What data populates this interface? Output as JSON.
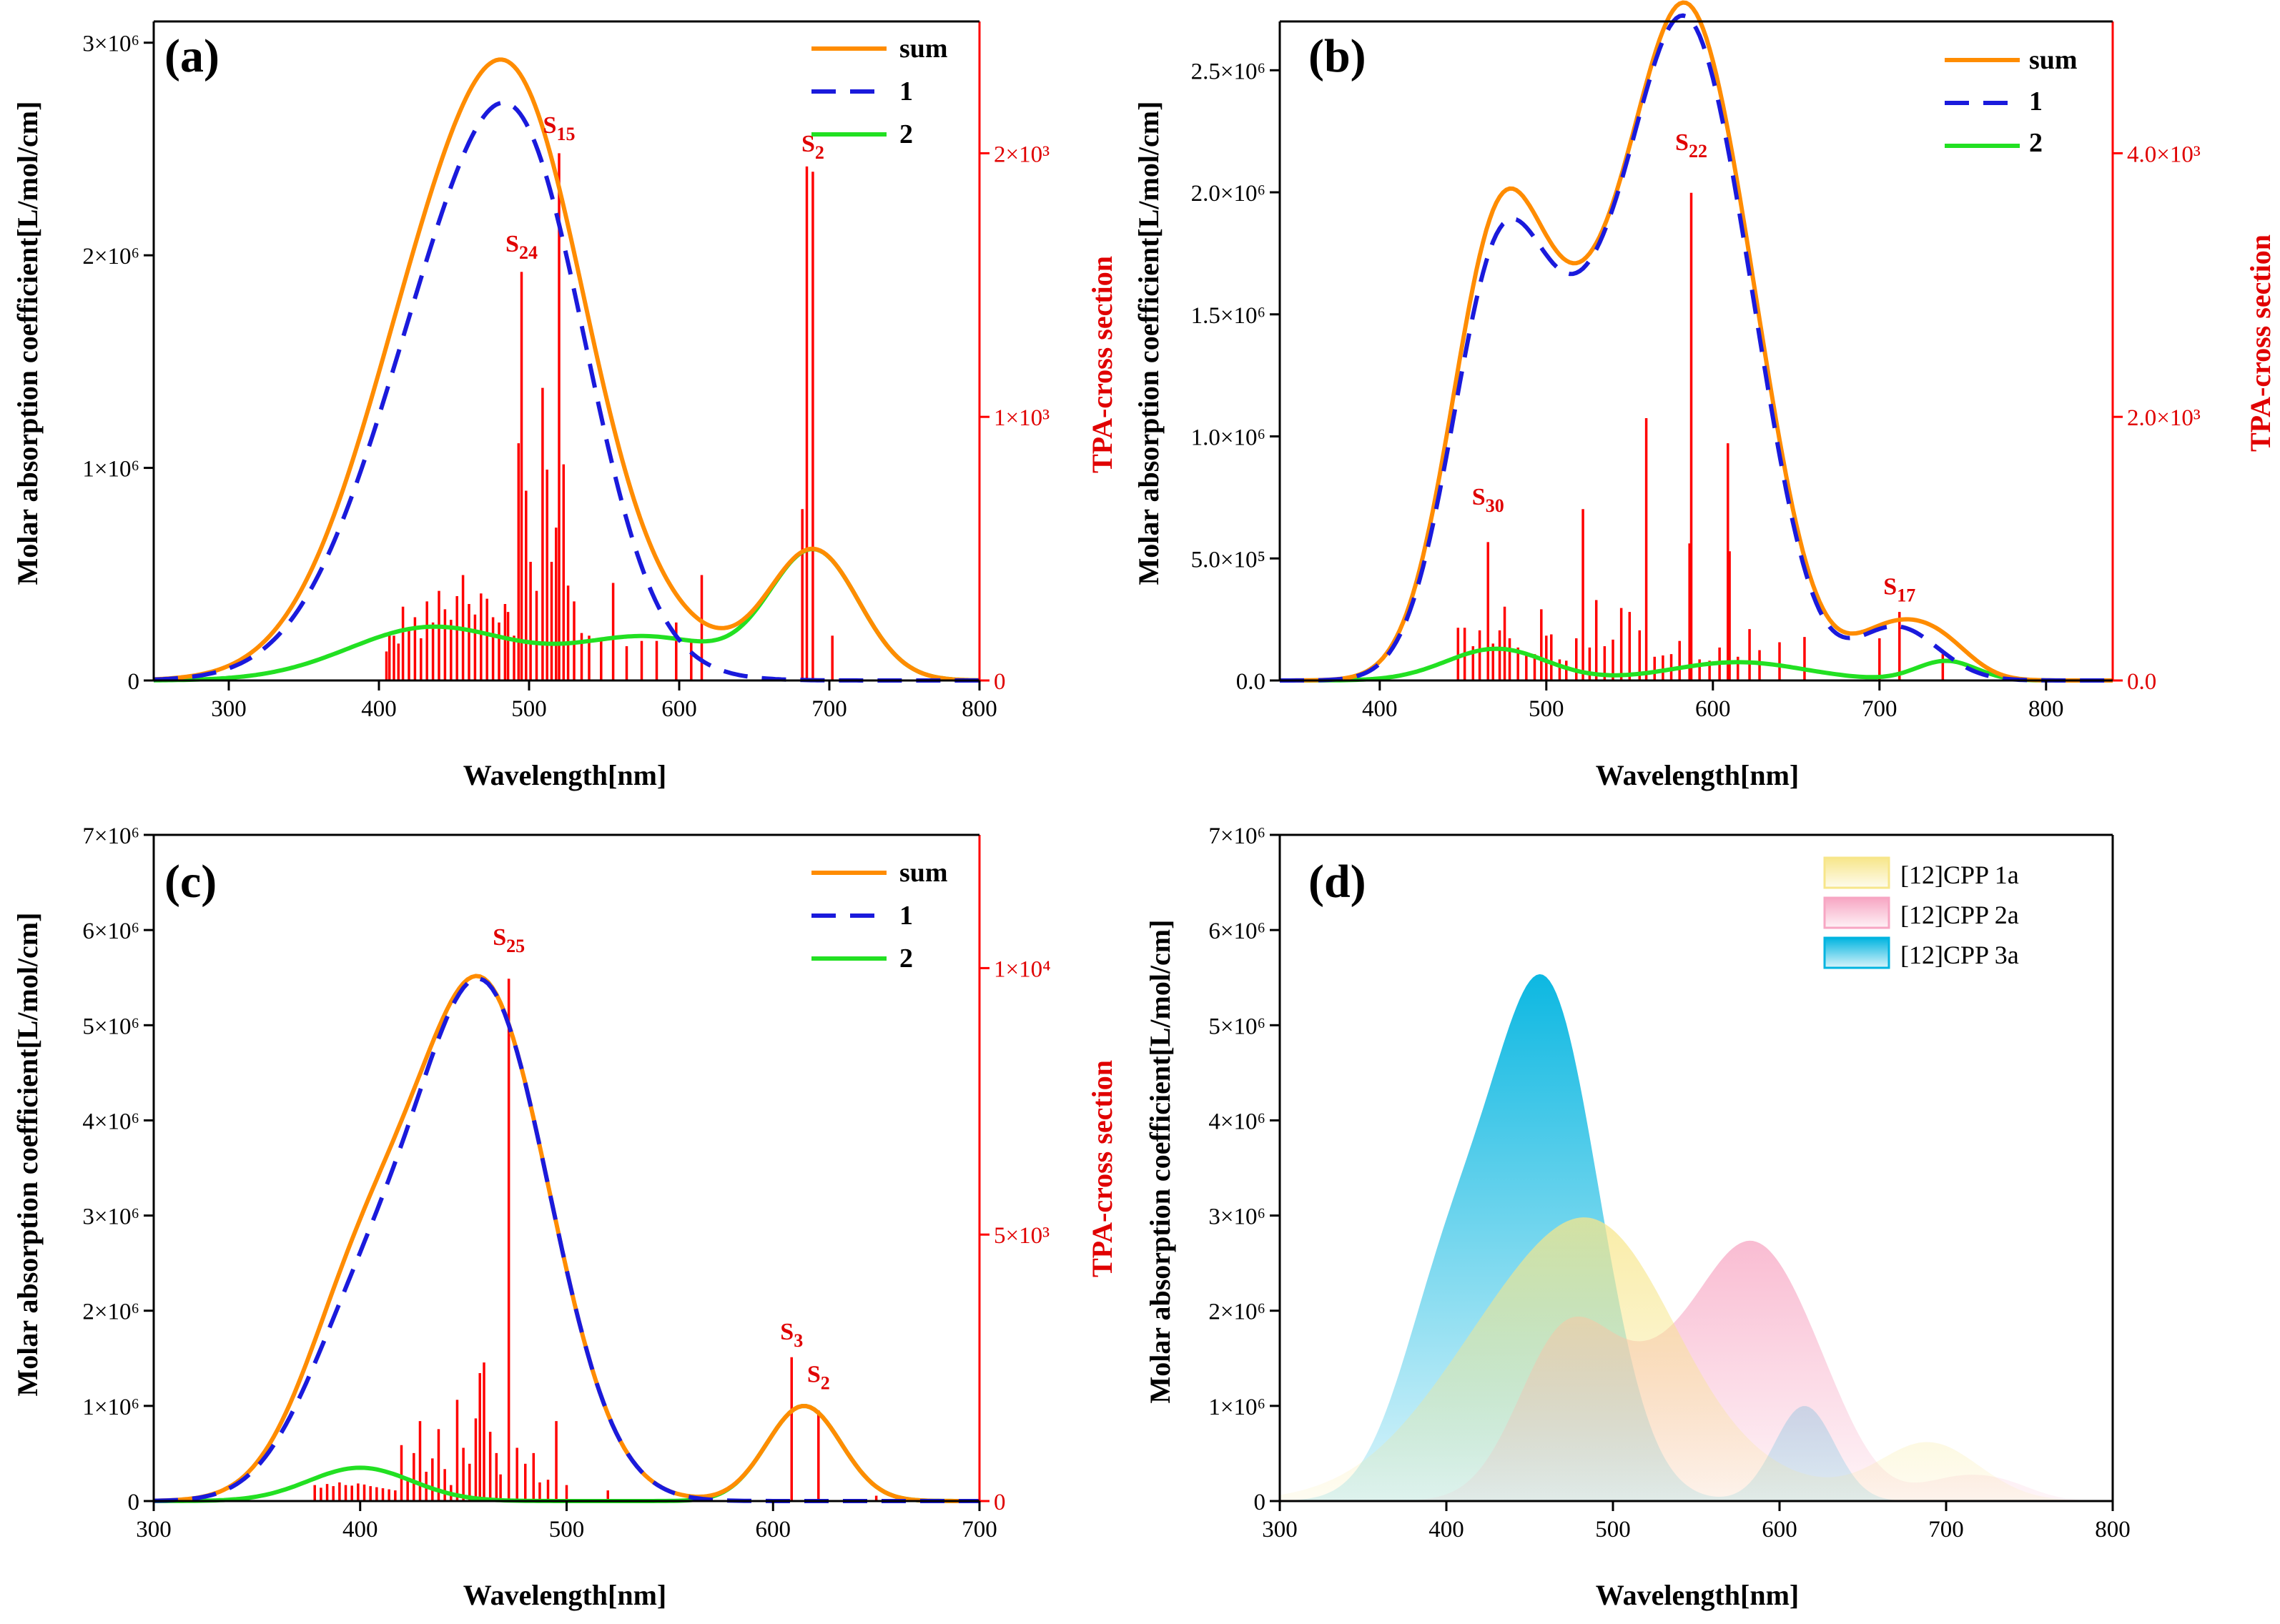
{
  "colors": {
    "sum": "#ff8c00",
    "series1": "#1a1adc",
    "series2": "#22e022",
    "tpa": "#ff0000",
    "cpp1a": "#f7e68a",
    "cpp2a": "#f7a6c3",
    "cpp3a": "#00b4e0"
  },
  "chart_data": [
    {
      "panel": "(a)",
      "type": "line",
      "xlabel": "Wavelength[nm]",
      "ylabel": "Molar absorption coefficient[L/mol/cm]",
      "y2label": "TPA-cross section",
      "xlim": [
        250,
        800
      ],
      "xticks": [
        300,
        400,
        500,
        600,
        700,
        800
      ],
      "ylim": [
        0,
        3100000
      ],
      "yticks": [
        {
          "v": 0,
          "t": "0"
        },
        {
          "v": 1000000,
          "t": "1×10⁶"
        },
        {
          "v": 2000000,
          "t": "2×10⁶"
        },
        {
          "v": 3000000,
          "t": "3×10⁶"
        }
      ],
      "y2lim": [
        0,
        2500
      ],
      "y2ticks": [
        {
          "v": 0,
          "t": "0"
        },
        {
          "v": 1000,
          "t": "1×10³"
        },
        {
          "v": 2000,
          "t": "2×10³"
        }
      ],
      "legend": [
        "sum",
        "1",
        "2"
      ],
      "bands": {
        "1": [
          [
            460,
            60,
            2000000
          ],
          [
            505,
            40,
            1000000
          ]
        ],
        "2": [
          [
            435,
            55,
            250000
          ],
          [
            580,
            50,
            200000
          ],
          [
            690,
            30,
            600000
          ]
        ]
      },
      "tpa_sticks": [
        [
          405,
          110
        ],
        [
          407,
          180
        ],
        [
          410,
          170
        ],
        [
          413,
          140
        ],
        [
          416,
          280
        ],
        [
          420,
          200
        ],
        [
          424,
          240
        ],
        [
          428,
          160
        ],
        [
          432,
          300
        ],
        [
          436,
          220
        ],
        [
          440,
          340
        ],
        [
          444,
          270
        ],
        [
          448,
          230
        ],
        [
          452,
          320
        ],
        [
          456,
          400
        ],
        [
          460,
          290
        ],
        [
          464,
          250
        ],
        [
          468,
          330
        ],
        [
          472,
          310
        ],
        [
          476,
          240
        ],
        [
          480,
          220
        ],
        [
          484,
          290
        ],
        [
          486,
          260
        ],
        [
          490,
          170
        ],
        [
          493,
          900
        ],
        [
          495,
          1550
        ],
        [
          498,
          720
        ],
        [
          501,
          450
        ],
        [
          505,
          340
        ],
        [
          509,
          1110
        ],
        [
          512,
          800
        ],
        [
          515,
          450
        ],
        [
          518,
          580
        ],
        [
          520,
          2000
        ],
        [
          523,
          820
        ],
        [
          526,
          360
        ],
        [
          530,
          300
        ],
        [
          535,
          180
        ],
        [
          540,
          170
        ],
        [
          548,
          150
        ],
        [
          556,
          370
        ],
        [
          565,
          130
        ],
        [
          575,
          150
        ],
        [
          585,
          150
        ],
        [
          598,
          220
        ],
        [
          608,
          150
        ],
        [
          615,
          400
        ],
        [
          682,
          650
        ],
        [
          685,
          1950
        ],
        [
          689,
          1930
        ],
        [
          702,
          170
        ]
      ],
      "state_labels": [
        {
          "base": "S",
          "sub": "15",
          "x": 520,
          "tpa": 2050
        },
        {
          "base": "S",
          "sub": "24",
          "x": 495,
          "tpa": 1600
        },
        {
          "base": "S",
          "sub": "2",
          "x": 689,
          "tpa": 1980
        }
      ]
    },
    {
      "panel": "(b)",
      "type": "line",
      "xlabel": "Wavelength[nm]",
      "ylabel": "Molar absorption coefficient[L/mol/cm]",
      "y2label": "TPA-cross section",
      "xlim": [
        340,
        840
      ],
      "xticks": [
        400,
        500,
        600,
        700,
        800
      ],
      "ylim": [
        0,
        2700000
      ],
      "yticks": [
        {
          "v": 0,
          "t": "0.0"
        },
        {
          "v": 500000,
          "t": "5.0×10⁵"
        },
        {
          "v": 1000000,
          "t": "1.0×10⁶"
        },
        {
          "v": 1500000,
          "t": "1.5×10⁶"
        },
        {
          "v": 2000000,
          "t": "2.0×10⁶"
        },
        {
          "v": 2500000,
          "t": "2.5×10⁶"
        }
      ],
      "y2lim": [
        0,
        5000
      ],
      "y2ticks": [
        {
          "v": 0,
          "t": "0.0"
        },
        {
          "v": 2000,
          "t": "2.0×10³"
        },
        {
          "v": 4000,
          "t": "4.0×10³"
        }
      ],
      "legend": [
        "sum",
        "1",
        "2"
      ],
      "bands": {
        "1": [
          [
            470,
            28,
            1550000
          ],
          [
            530,
            35,
            1200000
          ],
          [
            585,
            30,
            2200000
          ],
          [
            625,
            25,
            600000
          ],
          [
            710,
            25,
            220000
          ]
        ],
        "2": [
          [
            470,
            30,
            130000
          ],
          [
            615,
            40,
            75000
          ],
          [
            740,
            18,
            80000
          ]
        ]
      },
      "tpa_sticks": [
        [
          447,
          400
        ],
        [
          451,
          400
        ],
        [
          456,
          260
        ],
        [
          460,
          380
        ],
        [
          465,
          1050
        ],
        [
          468,
          280
        ],
        [
          472,
          380
        ],
        [
          475,
          560
        ],
        [
          478,
          320
        ],
        [
          483,
          250
        ],
        [
          488,
          210
        ],
        [
          493,
          200
        ],
        [
          497,
          540
        ],
        [
          500,
          340
        ],
        [
          503,
          350
        ],
        [
          508,
          160
        ],
        [
          512,
          150
        ],
        [
          518,
          320
        ],
        [
          522,
          1300
        ],
        [
          526,
          250
        ],
        [
          530,
          610
        ],
        [
          535,
          260
        ],
        [
          540,
          310
        ],
        [
          545,
          550
        ],
        [
          550,
          520
        ],
        [
          556,
          380
        ],
        [
          560,
          1990
        ],
        [
          565,
          180
        ],
        [
          570,
          190
        ],
        [
          575,
          200
        ],
        [
          580,
          300
        ],
        [
          586,
          1040
        ],
        [
          587,
          3700
        ],
        [
          592,
          160
        ],
        [
          598,
          150
        ],
        [
          604,
          250
        ],
        [
          609,
          1800
        ],
        [
          610,
          980
        ],
        [
          615,
          180
        ],
        [
          622,
          390
        ],
        [
          628,
          230
        ],
        [
          640,
          290
        ],
        [
          655,
          330
        ],
        [
          700,
          320
        ],
        [
          712,
          520
        ],
        [
          738,
          200
        ]
      ],
      "state_labels": [
        {
          "base": "S",
          "sub": "30",
          "x": 465,
          "tpa": 1280
        },
        {
          "base": "S",
          "sub": "22",
          "x": 587,
          "tpa": 3970
        },
        {
          "base": "S",
          "sub": "17",
          "x": 712,
          "tpa": 600
        }
      ]
    },
    {
      "panel": "(c)",
      "type": "line",
      "xlabel": "Wavelength[nm]",
      "ylabel": "Molar absorption coefficient[L/mol/cm]",
      "y2label": "TPA-cross section",
      "xlim": [
        300,
        700
      ],
      "xticks": [
        300,
        400,
        500,
        600,
        700
      ],
      "ylim": [
        0,
        7000000
      ],
      "yticks": [
        {
          "v": 0,
          "t": "0"
        },
        {
          "v": 1000000,
          "t": "1×10⁶"
        },
        {
          "v": 2000000,
          "t": "2×10⁶"
        },
        {
          "v": 3000000,
          "t": "3×10⁶"
        },
        {
          "v": 4000000,
          "t": "4×10⁶"
        },
        {
          "v": 5000000,
          "t": "5×10⁶"
        },
        {
          "v": 6000000,
          "t": "6×10⁶"
        },
        {
          "v": 7000000,
          "t": "7×10⁶"
        }
      ],
      "y2lim": [
        0,
        12500
      ],
      "y2ticks": [
        {
          "v": 0,
          "t": "0"
        },
        {
          "v": 5000,
          "t": "5×10³"
        },
        {
          "v": 10000,
          "t": "1×10⁴"
        }
      ],
      "legend": [
        "sum",
        "1",
        "2"
      ],
      "bands": {
        "1": [
          [
            400,
            28,
            1700000
          ],
          [
            460,
            32,
            5300000
          ]
        ],
        "2": [
          [
            400,
            25,
            350000
          ],
          [
            615,
            18,
            1000000
          ]
        ]
      },
      "tpa_sticks": [
        [
          378,
          300
        ],
        [
          381,
          250
        ],
        [
          384,
          320
        ],
        [
          387,
          280
        ],
        [
          390,
          350
        ],
        [
          393,
          300
        ],
        [
          396,
          290
        ],
        [
          399,
          330
        ],
        [
          402,
          310
        ],
        [
          405,
          280
        ],
        [
          408,
          260
        ],
        [
          411,
          240
        ],
        [
          414,
          220
        ],
        [
          417,
          200
        ],
        [
          420,
          1050
        ],
        [
          423,
          400
        ],
        [
          426,
          900
        ],
        [
          429,
          1500
        ],
        [
          432,
          550
        ],
        [
          435,
          800
        ],
        [
          438,
          1350
        ],
        [
          441,
          600
        ],
        [
          444,
          300
        ],
        [
          447,
          1900
        ],
        [
          450,
          1000
        ],
        [
          453,
          700
        ],
        [
          456,
          1550
        ],
        [
          458,
          2400
        ],
        [
          460,
          2600
        ],
        [
          463,
          1300
        ],
        [
          466,
          900
        ],
        [
          468,
          500
        ],
        [
          472,
          9800
        ],
        [
          476,
          1000
        ],
        [
          480,
          700
        ],
        [
          484,
          900
        ],
        [
          487,
          350
        ],
        [
          491,
          400
        ],
        [
          495,
          1500
        ],
        [
          500,
          300
        ],
        [
          520,
          200
        ],
        [
          609,
          2700
        ],
        [
          622,
          1700
        ],
        [
          650,
          100
        ]
      ],
      "state_labels": [
        {
          "base": "S",
          "sub": "25",
          "x": 472,
          "tpa": 10300
        },
        {
          "base": "S",
          "sub": "3",
          "x": 609,
          "tpa": 2900
        },
        {
          "base": "S",
          "sub": "2",
          "x": 622,
          "tpa": 2100
        }
      ]
    },
    {
      "panel": "(d)",
      "type": "area",
      "xlabel": "Wavelength[nm]",
      "ylabel": "Molar absorption coefficient[L/mol/cm]",
      "xlim": [
        300,
        800
      ],
      "xticks": [
        300,
        400,
        500,
        600,
        700,
        800
      ],
      "ylim": [
        0,
        7000000
      ],
      "yticks": [
        {
          "v": 0,
          "t": "0"
        },
        {
          "v": 1000000,
          "t": "1×10⁶"
        },
        {
          "v": 2000000,
          "t": "2×10⁶"
        },
        {
          "v": 3000000,
          "t": "3×10⁶"
        },
        {
          "v": 4000000,
          "t": "4×10⁶"
        },
        {
          "v": 5000000,
          "t": "5×10⁶"
        },
        {
          "v": 6000000,
          "t": "6×10⁶"
        },
        {
          "v": 7000000,
          "t": "7×10⁶"
        }
      ],
      "series": [
        {
          "name": "[12]CPP 1a",
          "color": "cpp1a",
          "bands": [
            [
              460,
              60,
              2250000
            ],
            [
              505,
              40,
              1000000
            ],
            [
              580,
              50,
              200000
            ],
            [
              690,
              30,
              600000
            ]
          ]
        },
        {
          "name": "[12]CPP 2a",
          "color": "cpp2a",
          "bands": [
            [
              470,
              28,
              1600000
            ],
            [
              530,
              35,
              1200000
            ],
            [
              585,
              30,
              2200000
            ],
            [
              625,
              25,
              650000
            ],
            [
              710,
              25,
              250000
            ],
            [
              740,
              18,
              80000
            ]
          ]
        },
        {
          "name": "[12]CPP 3a",
          "color": "cpp3a",
          "bands": [
            [
              400,
              28,
              2050000
            ],
            [
              460,
              32,
              5300000
            ],
            [
              615,
              18,
              1000000
            ]
          ]
        }
      ]
    }
  ]
}
